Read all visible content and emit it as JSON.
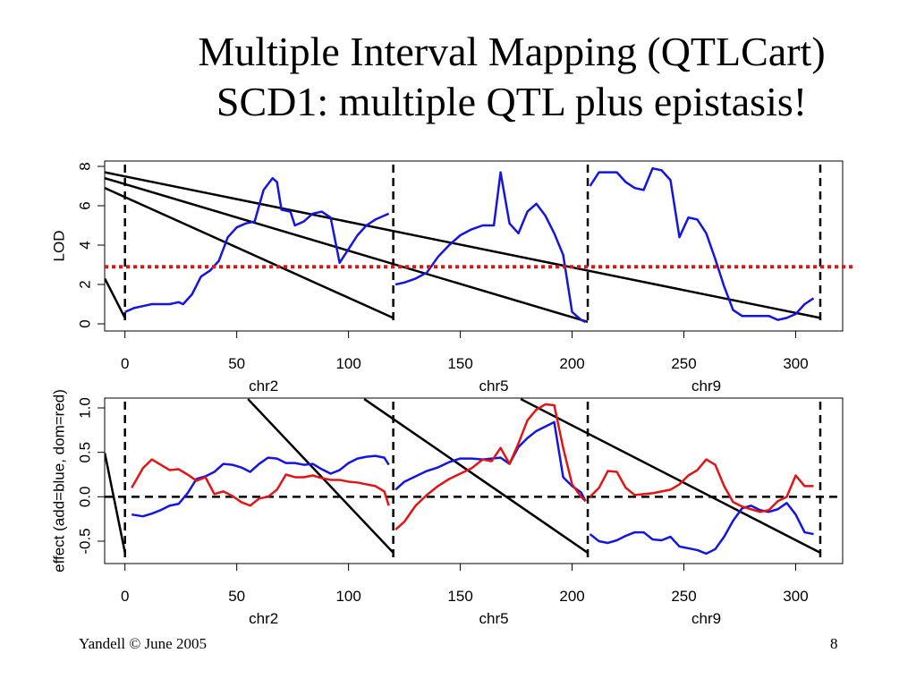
{
  "title": {
    "line1": "Multiple Interval Mapping (QTLCart)",
    "line2": "SCD1: multiple QTL plus epistasis!"
  },
  "footer": {
    "left": "Yandell © June 2005",
    "right": "8"
  },
  "colors": {
    "add": "#1515e0",
    "dom": "#e01515",
    "threshold": "#e01515",
    "black": "#000000"
  },
  "chart_data": [
    {
      "type": "line",
      "ylabel": "LOD",
      "xlim": [
        -9,
        322
      ],
      "ylim": [
        0,
        8
      ],
      "yticks": [
        0,
        2,
        4,
        6,
        8
      ],
      "xticks": [
        0,
        50,
        100,
        150,
        200,
        250,
        300
      ],
      "chromosome_labels": [
        {
          "label": "chr2",
          "x": 62
        },
        {
          "label": "chr5",
          "x": 165
        },
        {
          "label": "chr9",
          "x": 260
        }
      ],
      "chromosome_boundaries": [
        0,
        120,
        207,
        311
      ],
      "threshold": 2.9,
      "series": [
        {
          "x": [
            0,
            4,
            8,
            12,
            16,
            20,
            24,
            26,
            30,
            34,
            38,
            42,
            46,
            50,
            54,
            58,
            62,
            66,
            68,
            70,
            74,
            76,
            80,
            84,
            88,
            92,
            96,
            100,
            104,
            108,
            112,
            116,
            118
          ],
          "values": [
            0.6,
            0.8,
            0.9,
            1.0,
            1.0,
            1.0,
            1.1,
            1.0,
            1.5,
            2.4,
            2.7,
            3.2,
            4.4,
            4.9,
            5.1,
            5.2,
            6.8,
            7.4,
            7.2,
            5.8,
            5.7,
            5.0,
            5.2,
            5.6,
            5.7,
            5.4,
            3.1,
            3.8,
            4.5,
            5.0,
            5.3,
            5.5,
            5.6
          ]
        },
        {
          "x": [
            121,
            125,
            130,
            135,
            140,
            145,
            150,
            155,
            160,
            165,
            168,
            172,
            176,
            180,
            184,
            188,
            192,
            196,
            200,
            204,
            206
          ],
          "values": [
            2.0,
            2.1,
            2.3,
            2.6,
            3.4,
            4.0,
            4.5,
            4.8,
            5.0,
            5.0,
            7.7,
            5.1,
            4.6,
            5.7,
            6.1,
            5.5,
            4.6,
            3.5,
            0.6,
            0.2,
            0.1
          ]
        },
        {
          "x": [
            208,
            212,
            216,
            220,
            224,
            228,
            232,
            236,
            240,
            244,
            248,
            252,
            256,
            260,
            264,
            268,
            272,
            276,
            280,
            284,
            288,
            292,
            296,
            300,
            304,
            308
          ],
          "values": [
            7.0,
            7.7,
            7.7,
            7.7,
            7.2,
            6.9,
            6.8,
            7.9,
            7.8,
            7.3,
            4.4,
            5.4,
            5.3,
            4.6,
            3.3,
            1.9,
            0.7,
            0.4,
            0.4,
            0.4,
            0.4,
            0.2,
            0.3,
            0.5,
            1.0,
            1.3
          ]
        }
      ],
      "diagonal_lines": [
        {
          "x": [
            -9,
            0
          ],
          "y": [
            2.3,
            0.3
          ]
        },
        {
          "x": [
            -9,
            120
          ],
          "y": [
            6.9,
            0.3
          ]
        },
        {
          "x": [
            -9,
            207
          ],
          "y": [
            7.4,
            0.1
          ]
        },
        {
          "x": [
            -9,
            311
          ],
          "y": [
            7.7,
            0.3
          ]
        }
      ]
    },
    {
      "type": "line",
      "ylabel": "effect (add=blue, dom=red)",
      "xlim": [
        -9,
        322
      ],
      "ylim": [
        -0.65,
        1.05
      ],
      "yticks": [
        -0.5,
        0.0,
        0.5,
        1.0
      ],
      "ytick_labels": [
        "-0.5",
        "0.0",
        "0.5",
        "1.0"
      ],
      "xticks": [
        0,
        50,
        100,
        150,
        200,
        250,
        300
      ],
      "chromosome_labels": [
        {
          "label": "chr2",
          "x": 62
        },
        {
          "label": "chr5",
          "x": 165
        },
        {
          "label": "chr9",
          "x": 260
        }
      ],
      "chromosome_boundaries": [
        0,
        120,
        207,
        311
      ],
      "reference_line": 0,
      "series": [
        {
          "name": "add",
          "color": "add",
          "segments": [
            {
              "x": [
                3,
                8,
                12,
                16,
                20,
                24,
                28,
                32,
                36,
                40,
                44,
                48,
                52,
                56,
                60,
                64,
                68,
                72,
                76,
                80,
                84,
                88,
                92,
                96,
                100,
                104,
                108,
                112,
                116,
                118
              ],
              "values": [
                -0.2,
                -0.22,
                -0.19,
                -0.15,
                -0.1,
                -0.08,
                0.04,
                0.2,
                0.23,
                0.28,
                0.37,
                0.36,
                0.33,
                0.28,
                0.37,
                0.44,
                0.43,
                0.38,
                0.38,
                0.36,
                0.37,
                0.31,
                0.26,
                0.3,
                0.38,
                0.43,
                0.45,
                0.46,
                0.44,
                0.36
              ]
            },
            {
              "x": [
                121,
                125,
                130,
                135,
                140,
                145,
                150,
                155,
                160,
                164,
                168,
                172,
                176,
                180,
                184,
                188,
                192,
                196,
                200,
                204,
                206
              ],
              "values": [
                0.08,
                0.17,
                0.23,
                0.29,
                0.33,
                0.39,
                0.43,
                0.43,
                0.42,
                0.43,
                0.44,
                0.37,
                0.56,
                0.66,
                0.74,
                0.79,
                0.84,
                0.22,
                0.12,
                0.05,
                -0.05
              ]
            },
            {
              "x": [
                208,
                212,
                216,
                220,
                224,
                228,
                232,
                236,
                240,
                244,
                248,
                252,
                256,
                260,
                264,
                268,
                272,
                276,
                280,
                284,
                288,
                292,
                296,
                300,
                304,
                308
              ],
              "values": [
                -0.42,
                -0.5,
                -0.52,
                -0.49,
                -0.44,
                -0.4,
                -0.4,
                -0.48,
                -0.49,
                -0.45,
                -0.56,
                -0.58,
                -0.6,
                -0.64,
                -0.59,
                -0.45,
                -0.27,
                -0.13,
                -0.1,
                -0.15,
                -0.17,
                -0.14,
                -0.07,
                -0.2,
                -0.4,
                -0.42
              ]
            }
          ]
        },
        {
          "name": "dom",
          "color": "dom",
          "segments": [
            {
              "x": [
                3,
                8,
                12,
                16,
                20,
                24,
                28,
                32,
                36,
                40,
                44,
                48,
                52,
                56,
                60,
                64,
                68,
                72,
                76,
                80,
                84,
                88,
                92,
                96,
                100,
                104,
                108,
                112,
                116,
                118
              ],
              "values": [
                0.1,
                0.32,
                0.42,
                0.36,
                0.3,
                0.31,
                0.25,
                0.18,
                0.22,
                0.03,
                0.06,
                0.01,
                -0.06,
                -0.1,
                -0.02,
                0.0,
                0.08,
                0.25,
                0.22,
                0.22,
                0.24,
                0.21,
                0.19,
                0.19,
                0.17,
                0.16,
                0.14,
                0.12,
                0.06,
                -0.1
              ]
            },
            {
              "x": [
                121,
                125,
                130,
                135,
                140,
                145,
                150,
                155,
                160,
                164,
                168,
                172,
                176,
                180,
                184,
                188,
                192,
                196,
                200,
                204,
                206
              ],
              "values": [
                -0.37,
                -0.28,
                -0.1,
                0.02,
                0.12,
                0.2,
                0.26,
                0.32,
                0.42,
                0.4,
                0.55,
                0.37,
                0.6,
                0.86,
                0.98,
                1.04,
                1.03,
                0.55,
                0.14,
                0.0,
                -0.05
              ]
            },
            {
              "x": [
                208,
                212,
                216,
                220,
                224,
                228,
                232,
                236,
                240,
                244,
                248,
                252,
                256,
                260,
                264,
                268,
                272,
                276,
                280,
                284,
                288,
                292,
                296,
                300,
                304,
                308
              ],
              "values": [
                0.0,
                0.1,
                0.29,
                0.28,
                0.1,
                0.02,
                0.03,
                0.04,
                0.06,
                0.08,
                0.14,
                0.24,
                0.3,
                0.42,
                0.36,
                0.12,
                -0.06,
                -0.11,
                -0.14,
                -0.17,
                -0.15,
                -0.05,
                0.0,
                0.24,
                0.12,
                0.12
              ]
            }
          ]
        }
      ],
      "diagonal_lines": [
        {
          "x": [
            -9,
            0
          ],
          "y": [
            0.49,
            -0.63
          ]
        },
        {
          "x": [
            55,
            120
          ],
          "y": [
            1.1,
            -0.63
          ]
        },
        {
          "x": [
            107,
            207
          ],
          "y": [
            1.1,
            -0.63
          ]
        },
        {
          "x": [
            177,
            311
          ],
          "y": [
            1.1,
            -0.63
          ]
        }
      ]
    }
  ]
}
